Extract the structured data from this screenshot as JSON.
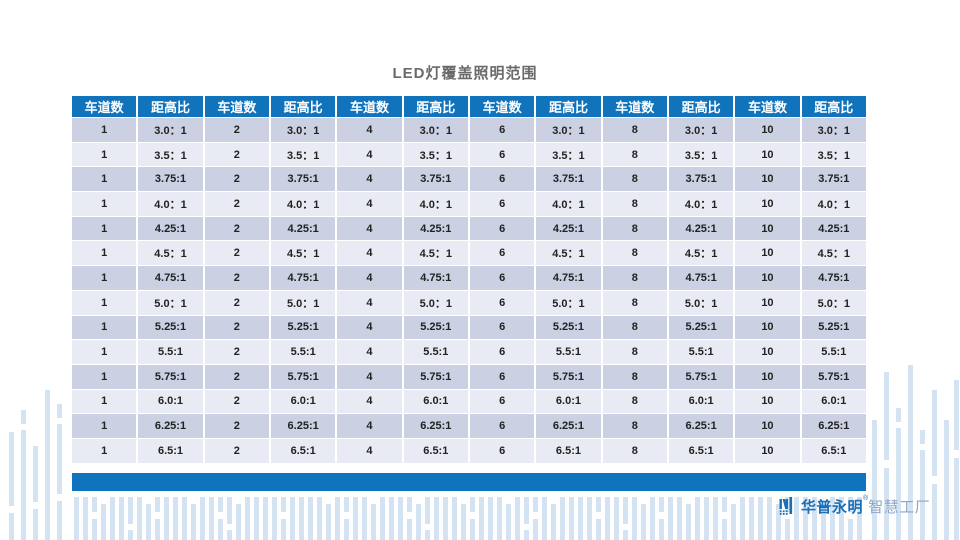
{
  "title": "LED灯覆盖照明范围",
  "table": {
    "header_lane": "车道数",
    "header_ratio": "距高比",
    "lanes": [
      "1",
      "2",
      "4",
      "6",
      "8",
      "10"
    ],
    "ratios": [
      "3.0：1",
      "3.5：1",
      "3.75:1",
      "4.0：1",
      "4.25:1",
      "4.5：1",
      "4.75:1",
      "5.0：1",
      "5.25:1",
      "5.5:1",
      "5.75:1",
      "6.0:1",
      "6.25:1",
      "6.5:1"
    ]
  },
  "logo": {
    "brand": "华普永明",
    "reg_mark": "®",
    "suffix": "智慧工厂"
  },
  "colors": {
    "header_blue": "#1173bb",
    "footer_blue": "#0f73bd",
    "row_dark": "#cbd1e3",
    "row_light": "#e9ebf4",
    "decor_bar": "#d4e3f1",
    "title_gray": "#6a6a6a",
    "brand_blue": "#1a6fb5",
    "suffix_blue": "#8ba6c4",
    "cell_text": "#222222"
  }
}
